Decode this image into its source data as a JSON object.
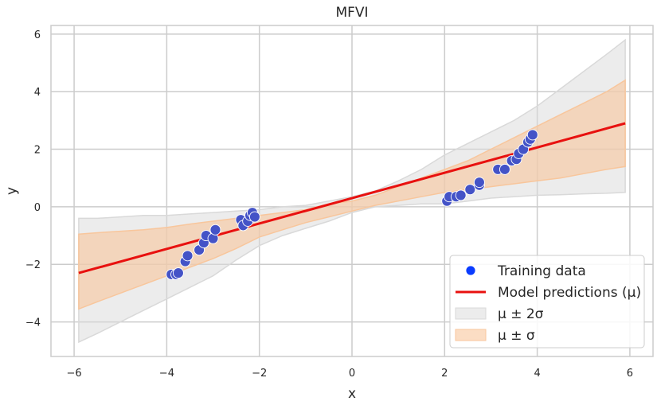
{
  "chart_data": {
    "type": "scatter",
    "title": "MFVI",
    "xlabel": "x",
    "ylabel": "y",
    "xlim": [
      -6.5,
      6.5
    ],
    "ylim": [
      -5.2,
      6.3
    ],
    "xticks": [
      -6,
      -4,
      -2,
      0,
      2,
      4,
      6
    ],
    "yticks": [
      -4,
      -2,
      0,
      2,
      4,
      6
    ],
    "xtick_labels": [
      "−6",
      "−4",
      "−2",
      "0",
      "2",
      "4",
      "6"
    ],
    "ytick_labels": [
      "−4",
      "−2",
      "0",
      "2",
      "4",
      "6"
    ],
    "grid": true,
    "legend_position": "lower-right",
    "colors": {
      "points": "#4453c7",
      "points_legend": "#0a3cff",
      "line": "#e8110f",
      "band_2sigma": "#d9d9d9",
      "band_sigma": "#f8c69c",
      "grid": "#cccccc",
      "frame": "#cccccc"
    },
    "series": [
      {
        "name": "Training data",
        "kind": "scatter",
        "x": [
          -3.9,
          -3.8,
          -3.75,
          -3.6,
          -3.55,
          -3.3,
          -3.2,
          -3.15,
          -3.0,
          -2.95,
          -2.4,
          -2.35,
          -2.25,
          -2.2,
          -2.15,
          -2.1,
          2.05,
          2.1,
          2.25,
          2.35,
          2.55,
          2.75,
          2.75,
          3.15,
          3.3,
          3.45,
          3.55,
          3.6,
          3.7,
          3.8,
          3.85,
          3.9
        ],
        "y": [
          -2.35,
          -2.35,
          -2.3,
          -1.9,
          -1.7,
          -1.5,
          -1.25,
          -1.0,
          -1.1,
          -0.8,
          -0.45,
          -0.65,
          -0.5,
          -0.3,
          -0.2,
          -0.35,
          0.2,
          0.35,
          0.35,
          0.4,
          0.6,
          0.75,
          0.85,
          1.3,
          1.3,
          1.6,
          1.65,
          1.85,
          2.0,
          2.25,
          2.35,
          2.5
        ]
      },
      {
        "name": "Model predictions (μ)",
        "kind": "line",
        "x": [
          -5.9,
          5.9
        ],
        "y": [
          -2.3,
          2.9
        ]
      },
      {
        "name": "μ ± 2σ",
        "kind": "band",
        "x": [
          -5.9,
          -5.5,
          -5.0,
          -4.5,
          -4.0,
          -3.5,
          -3.0,
          -2.5,
          -2.0,
          -1.5,
          -1.0,
          -0.5,
          0.0,
          0.5,
          1.0,
          1.5,
          2.0,
          2.5,
          3.0,
          3.5,
          4.0,
          4.5,
          5.0,
          5.5,
          5.9
        ],
        "lower": [
          -4.7,
          -4.4,
          -4.0,
          -3.6,
          -3.2,
          -2.8,
          -2.4,
          -1.85,
          -1.35,
          -1.0,
          -0.75,
          -0.5,
          -0.2,
          0.0,
          0.05,
          0.1,
          0.1,
          0.2,
          0.3,
          0.35,
          0.4,
          0.42,
          0.45,
          0.47,
          0.5
        ],
        "upper": [
          -0.4,
          -0.4,
          -0.35,
          -0.3,
          -0.3,
          -0.25,
          -0.2,
          -0.15,
          -0.1,
          0.0,
          0.05,
          0.2,
          0.35,
          0.55,
          0.9,
          1.3,
          1.8,
          2.2,
          2.6,
          3.0,
          3.5,
          4.1,
          4.7,
          5.3,
          5.8
        ]
      },
      {
        "name": "μ ± σ",
        "kind": "band",
        "x": [
          -5.9,
          -5.5,
          -5.0,
          -4.5,
          -4.0,
          -3.5,
          -3.0,
          -2.5,
          -2.0,
          -1.5,
          -1.0,
          -0.5,
          0.0,
          0.5,
          1.0,
          1.5,
          2.0,
          2.5,
          3.0,
          3.5,
          4.0,
          4.5,
          5.0,
          5.5,
          5.9
        ],
        "lower": [
          -3.55,
          -3.3,
          -3.0,
          -2.7,
          -2.4,
          -2.1,
          -1.8,
          -1.45,
          -1.05,
          -0.8,
          -0.55,
          -0.35,
          -0.15,
          0.05,
          0.2,
          0.35,
          0.5,
          0.6,
          0.7,
          0.8,
          0.9,
          1.0,
          1.15,
          1.3,
          1.4
        ],
        "upper": [
          -0.95,
          -0.9,
          -0.85,
          -0.8,
          -0.72,
          -0.6,
          -0.5,
          -0.4,
          -0.3,
          -0.2,
          -0.1,
          0.1,
          0.2,
          0.4,
          0.7,
          1.0,
          1.3,
          1.6,
          2.0,
          2.4,
          2.8,
          3.2,
          3.6,
          4.0,
          4.4
        ]
      }
    ]
  }
}
